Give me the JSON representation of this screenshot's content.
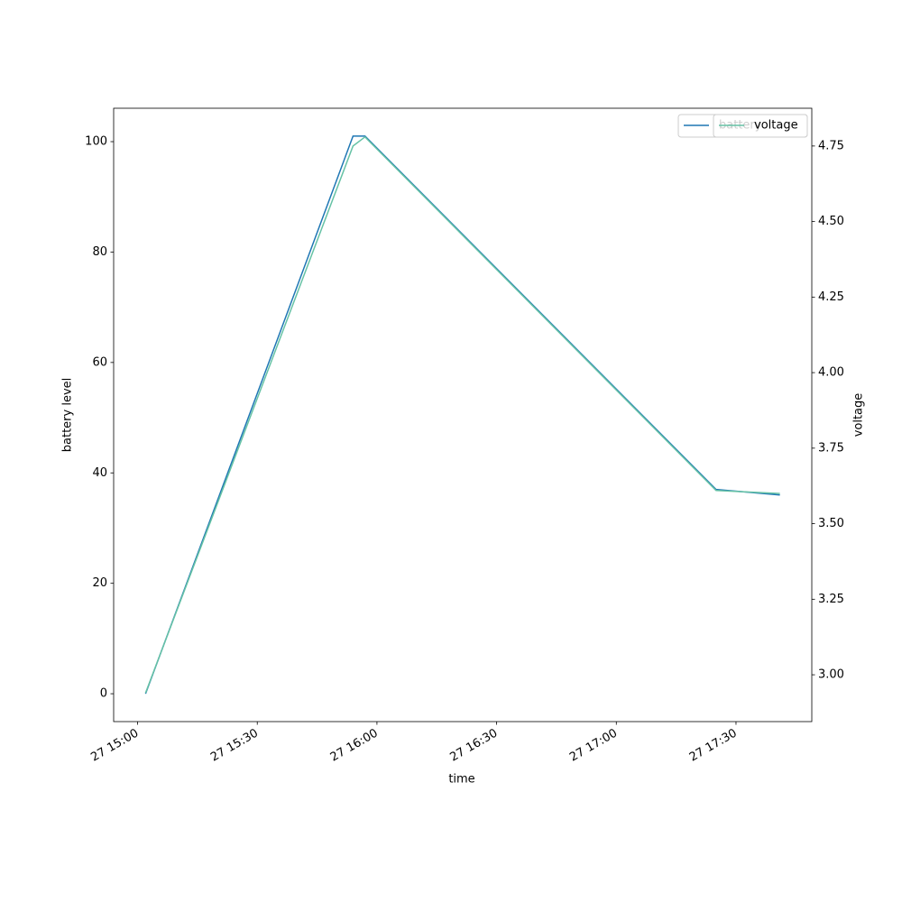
{
  "chart_data": {
    "type": "line",
    "xlabel": "time",
    "ylabel": "battery level",
    "y2label": "voltage",
    "x": [
      "27 15:02",
      "27 15:54",
      "27 15:57",
      "27 17:25",
      "27 17:41"
    ],
    "series": [
      {
        "name": "battery",
        "color": "#1f77b4",
        "values": [
          0,
          101,
          101,
          37,
          36
        ]
      },
      {
        "name": "voltage",
        "color": "#66c2a5",
        "axis": "y2",
        "values": [
          2.94,
          4.75,
          4.78,
          3.61,
          3.6
        ]
      }
    ],
    "xlim": [
      "27 14:54",
      "27 17:49"
    ],
    "xticks": [
      "27 15:00",
      "27 15:30",
      "27 16:00",
      "27 16:30",
      "27 17:00",
      "27 17:30"
    ],
    "ylim": [
      -5.05,
      106.05
    ],
    "yticks": [
      0,
      20,
      40,
      60,
      80,
      100
    ],
    "y2lim": [
      2.845,
      4.875
    ],
    "y2ticks": [
      {
        "value": 3,
        "label": "3.00"
      },
      {
        "value": 3.25,
        "label": "3.25"
      },
      {
        "value": 3.5,
        "label": "3.50"
      },
      {
        "value": 3.75,
        "label": "3.75"
      },
      {
        "value": 4,
        "label": "4.00"
      },
      {
        "value": 4.25,
        "label": "4.25"
      },
      {
        "value": 4.5,
        "label": "4.50"
      },
      {
        "value": 4.75,
        "label": "4.75"
      }
    ],
    "legend": "upper right"
  }
}
